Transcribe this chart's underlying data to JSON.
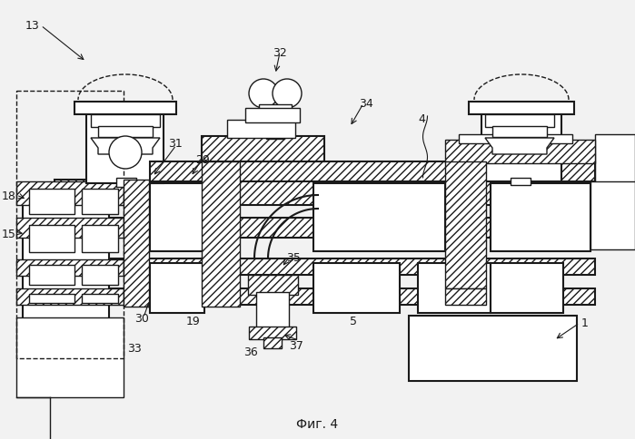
{
  "title": "Фиг. 4",
  "bg": "#f0f0f0",
  "lc": "#1a1a1a",
  "lw": 1.0,
  "lw2": 1.5,
  "hs": "////",
  "fs": 9
}
